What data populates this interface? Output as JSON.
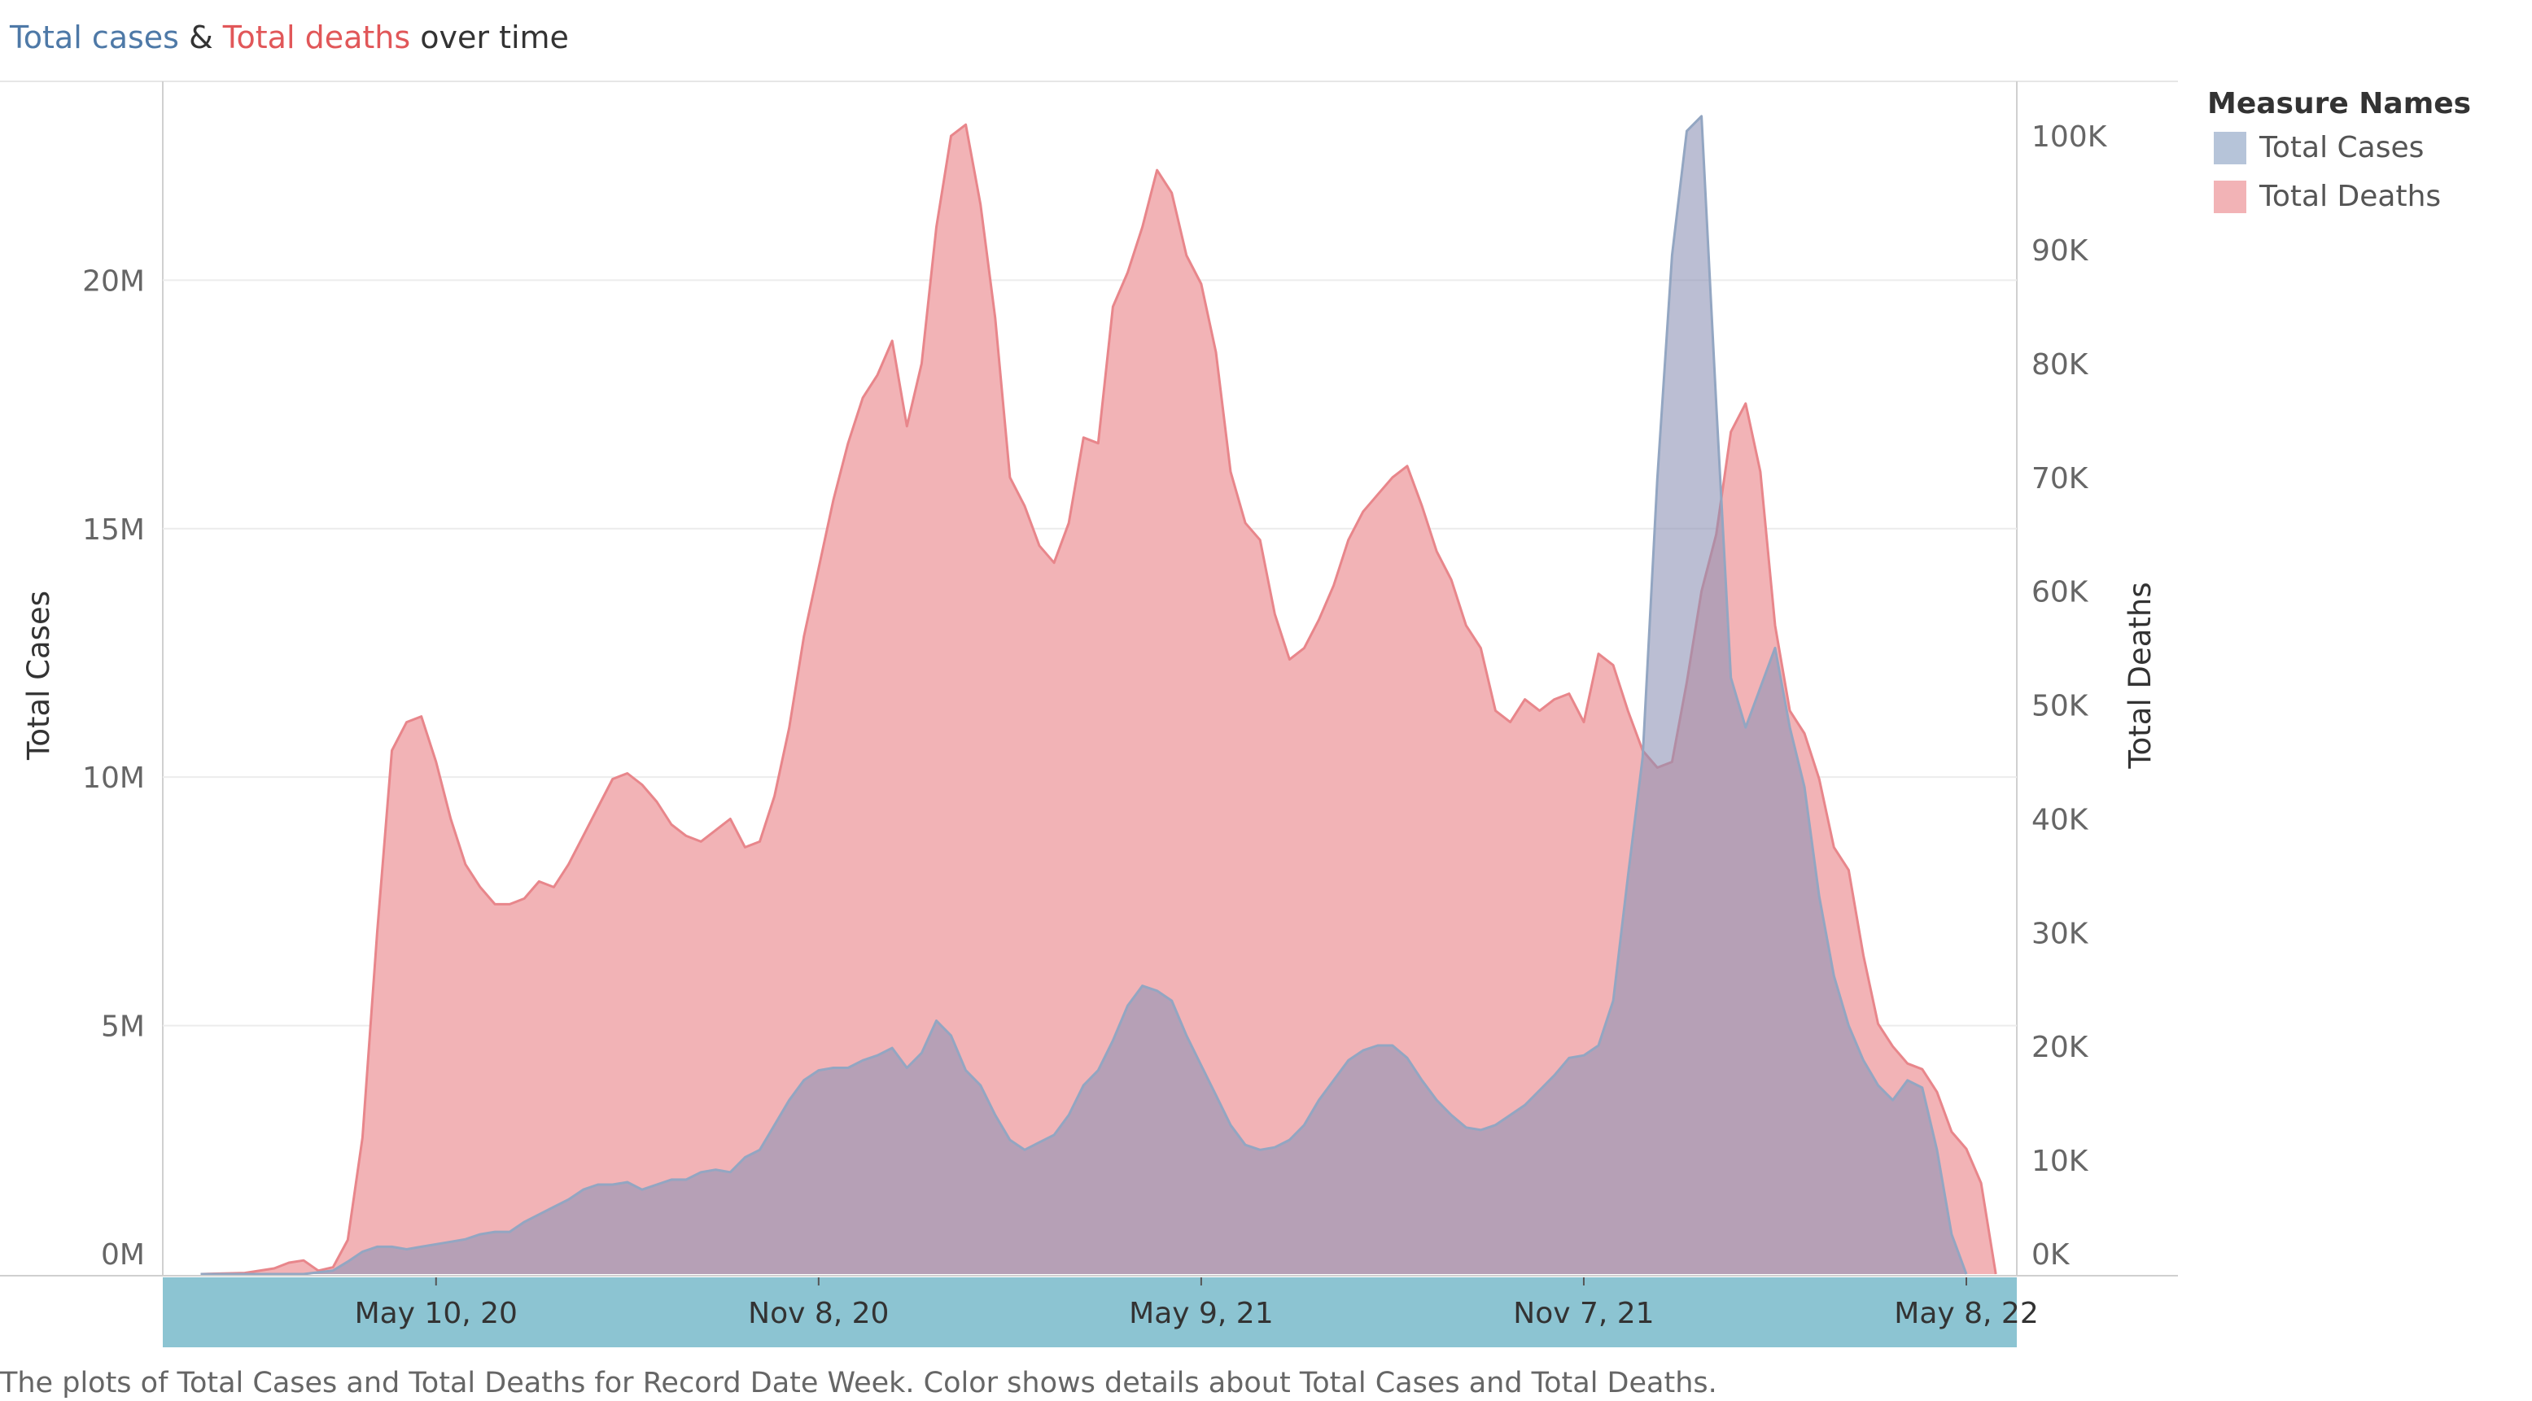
{
  "title": {
    "part1": "Total cases",
    "part2": " & ",
    "part3": "Total deaths",
    "part4": " over time",
    "color_cases": "#4e79a7",
    "color_deaths": "#e15759"
  },
  "footer": "The plots of Total Cases and Total Deaths for Record Date Week.  Color shows details about Total Cases and Total Deaths.",
  "legend": {
    "title": "Measure Names",
    "items": [
      {
        "label": "Total Cases",
        "color": "#b6c4d9"
      },
      {
        "label": "Total Deaths",
        "color": "#f2b3b6"
      }
    ]
  },
  "chart_data": {
    "type": "area",
    "x_type": "date",
    "x_range": [
      "2020-01-01",
      "2022-06-01"
    ],
    "x_ticks": [
      {
        "date": "2020-05-10",
        "label": "May 10, 20"
      },
      {
        "date": "2020-11-08",
        "label": "Nov 8, 20"
      },
      {
        "date": "2021-05-09",
        "label": "May 9, 21"
      },
      {
        "date": "2021-11-07",
        "label": "Nov 7, 21"
      },
      {
        "date": "2022-05-08",
        "label": "May 8, 22"
      }
    ],
    "y_left": {
      "label": "Total Cases",
      "min": 0,
      "max": 24000000,
      "ticks": [
        0,
        5000000,
        10000000,
        15000000,
        20000000
      ],
      "tick_labels": [
        "0M",
        "5M",
        "10M",
        "15M",
        "20M"
      ]
    },
    "y_right": {
      "label": "Total Deaths",
      "min": 0,
      "max": 104800,
      "ticks": [
        0,
        10000,
        20000,
        30000,
        40000,
        50000,
        60000,
        70000,
        80000,
        90000,
        100000
      ],
      "tick_labels": [
        "0K",
        "10K",
        "20K",
        "30K",
        "40K",
        "50K",
        "60K",
        "70K",
        "80K",
        "90K",
        "100K"
      ]
    },
    "grid": true,
    "legend_position": "right",
    "series": [
      {
        "name": "Total Deaths",
        "axis": "right",
        "fill": "#f2b3b6",
        "stroke": "#e8868b",
        "points": [
          [
            "2020-01-19",
            0
          ],
          [
            "2020-02-09",
            100
          ],
          [
            "2020-02-23",
            500
          ],
          [
            "2020-03-01",
            1000
          ],
          [
            "2020-03-08",
            1200
          ],
          [
            "2020-03-15",
            300
          ],
          [
            "2020-03-22",
            600
          ],
          [
            "2020-03-29",
            3000
          ],
          [
            "2020-04-05",
            12000
          ],
          [
            "2020-04-12",
            30000
          ],
          [
            "2020-04-19",
            46000
          ],
          [
            "2020-04-26",
            48500
          ],
          [
            "2020-05-03",
            49000
          ],
          [
            "2020-05-10",
            45000
          ],
          [
            "2020-05-17",
            40000
          ],
          [
            "2020-05-24",
            36000
          ],
          [
            "2020-05-31",
            34000
          ],
          [
            "2020-06-07",
            32500
          ],
          [
            "2020-06-14",
            32500
          ],
          [
            "2020-06-21",
            33000
          ],
          [
            "2020-06-28",
            34500
          ],
          [
            "2020-07-05",
            34000
          ],
          [
            "2020-07-12",
            36000
          ],
          [
            "2020-07-19",
            38500
          ],
          [
            "2020-07-26",
            41000
          ],
          [
            "2020-08-02",
            43500
          ],
          [
            "2020-08-09",
            44000
          ],
          [
            "2020-08-16",
            43000
          ],
          [
            "2020-08-23",
            41500
          ],
          [
            "2020-08-30",
            39500
          ],
          [
            "2020-09-06",
            38500
          ],
          [
            "2020-09-13",
            38000
          ],
          [
            "2020-09-20",
            39000
          ],
          [
            "2020-09-27",
            40000
          ],
          [
            "2020-10-04",
            37500
          ],
          [
            "2020-10-11",
            38000
          ],
          [
            "2020-10-18",
            42000
          ],
          [
            "2020-10-25",
            48000
          ],
          [
            "2020-11-01",
            56000
          ],
          [
            "2020-11-08",
            62000
          ],
          [
            "2020-11-15",
            68000
          ],
          [
            "2020-11-22",
            73000
          ],
          [
            "2020-11-29",
            77000
          ],
          [
            "2020-12-06",
            79000
          ],
          [
            "2020-12-13",
            82000
          ],
          [
            "2020-12-20",
            74500
          ],
          [
            "2020-12-27",
            80000
          ],
          [
            "2021-01-03",
            92000
          ],
          [
            "2021-01-10",
            100000
          ],
          [
            "2021-01-17",
            101000
          ],
          [
            "2021-01-24",
            94000
          ],
          [
            "2021-01-31",
            84000
          ],
          [
            "2021-02-07",
            70000
          ],
          [
            "2021-02-14",
            67500
          ],
          [
            "2021-02-21",
            64000
          ],
          [
            "2021-02-28",
            62500
          ],
          [
            "2021-03-07",
            66000
          ],
          [
            "2021-03-14",
            73500
          ],
          [
            "2021-03-21",
            73000
          ],
          [
            "2021-03-28",
            85000
          ],
          [
            "2021-04-04",
            88000
          ],
          [
            "2021-04-11",
            92000
          ],
          [
            "2021-04-18",
            97000
          ],
          [
            "2021-04-25",
            95000
          ],
          [
            "2021-05-02",
            89500
          ],
          [
            "2021-05-09",
            87000
          ],
          [
            "2021-05-16",
            81000
          ],
          [
            "2021-05-23",
            70500
          ],
          [
            "2021-05-30",
            66000
          ],
          [
            "2021-06-06",
            64500
          ],
          [
            "2021-06-13",
            58000
          ],
          [
            "2021-06-20",
            54000
          ],
          [
            "2021-06-27",
            55000
          ],
          [
            "2021-07-04",
            57500
          ],
          [
            "2021-07-11",
            60500
          ],
          [
            "2021-07-18",
            64500
          ],
          [
            "2021-07-25",
            67000
          ],
          [
            "2021-08-01",
            68500
          ],
          [
            "2021-08-08",
            70000
          ],
          [
            "2021-08-15",
            71000
          ],
          [
            "2021-08-22",
            67500
          ],
          [
            "2021-08-29",
            63500
          ],
          [
            "2021-09-05",
            61000
          ],
          [
            "2021-09-12",
            57000
          ],
          [
            "2021-09-19",
            55000
          ],
          [
            "2021-09-26",
            49500
          ],
          [
            "2021-10-03",
            48500
          ],
          [
            "2021-10-10",
            50500
          ],
          [
            "2021-10-17",
            49500
          ],
          [
            "2021-10-24",
            50500
          ],
          [
            "2021-10-31",
            51000
          ],
          [
            "2021-11-07",
            48500
          ],
          [
            "2021-11-14",
            54500
          ],
          [
            "2021-11-21",
            53500
          ],
          [
            "2021-11-28",
            49500
          ],
          [
            "2021-12-05",
            46000
          ],
          [
            "2021-12-12",
            44500
          ],
          [
            "2021-12-19",
            45000
          ],
          [
            "2021-12-26",
            52000
          ],
          [
            "2022-01-02",
            60000
          ],
          [
            "2022-01-09",
            65000
          ],
          [
            "2022-01-16",
            74000
          ],
          [
            "2022-01-23",
            76500
          ],
          [
            "2022-01-30",
            70500
          ],
          [
            "2022-02-06",
            57000
          ],
          [
            "2022-02-13",
            49500
          ],
          [
            "2022-02-20",
            47500
          ],
          [
            "2022-02-27",
            43500
          ],
          [
            "2022-03-06",
            37500
          ],
          [
            "2022-03-13",
            35500
          ],
          [
            "2022-03-20",
            28000
          ],
          [
            "2022-03-27",
            22000
          ],
          [
            "2022-04-03",
            20000
          ],
          [
            "2022-04-10",
            18500
          ],
          [
            "2022-04-17",
            18000
          ],
          [
            "2022-04-24",
            16000
          ],
          [
            "2022-05-01",
            12500
          ],
          [
            "2022-05-08",
            11000
          ],
          [
            "2022-05-15",
            8000
          ],
          [
            "2022-05-22",
            0
          ]
        ]
      },
      {
        "name": "Total Cases",
        "axis": "left",
        "fill": "#8e93b6",
        "fill_opacity": 0.6,
        "stroke": "#93a6c2",
        "points": [
          [
            "2020-01-19",
            0
          ],
          [
            "2020-03-08",
            0
          ],
          [
            "2020-03-22",
            70000
          ],
          [
            "2020-03-29",
            250000
          ],
          [
            "2020-04-05",
            450000
          ],
          [
            "2020-04-12",
            550000
          ],
          [
            "2020-04-19",
            550000
          ],
          [
            "2020-04-26",
            500000
          ],
          [
            "2020-05-03",
            550000
          ],
          [
            "2020-05-10",
            600000
          ],
          [
            "2020-05-17",
            650000
          ],
          [
            "2020-05-24",
            700000
          ],
          [
            "2020-05-31",
            800000
          ],
          [
            "2020-06-07",
            850000
          ],
          [
            "2020-06-14",
            850000
          ],
          [
            "2020-06-21",
            1050000
          ],
          [
            "2020-06-28",
            1200000
          ],
          [
            "2020-07-05",
            1350000
          ],
          [
            "2020-07-12",
            1500000
          ],
          [
            "2020-07-19",
            1700000
          ],
          [
            "2020-07-26",
            1800000
          ],
          [
            "2020-08-02",
            1800000
          ],
          [
            "2020-08-09",
            1850000
          ],
          [
            "2020-08-16",
            1700000
          ],
          [
            "2020-08-23",
            1800000
          ],
          [
            "2020-08-30",
            1900000
          ],
          [
            "2020-09-06",
            1900000
          ],
          [
            "2020-09-13",
            2050000
          ],
          [
            "2020-09-20",
            2100000
          ],
          [
            "2020-09-27",
            2050000
          ],
          [
            "2020-10-04",
            2350000
          ],
          [
            "2020-10-11",
            2500000
          ],
          [
            "2020-10-18",
            3000000
          ],
          [
            "2020-10-25",
            3500000
          ],
          [
            "2020-11-01",
            3900000
          ],
          [
            "2020-11-08",
            4100000
          ],
          [
            "2020-11-15",
            4150000
          ],
          [
            "2020-11-22",
            4150000
          ],
          [
            "2020-11-29",
            4300000
          ],
          [
            "2020-12-06",
            4400000
          ],
          [
            "2020-12-13",
            4550000
          ],
          [
            "2020-12-20",
            4150000
          ],
          [
            "2020-12-27",
            4450000
          ],
          [
            "2021-01-03",
            5100000
          ],
          [
            "2021-01-10",
            4800000
          ],
          [
            "2021-01-17",
            4100000
          ],
          [
            "2021-01-24",
            3800000
          ],
          [
            "2021-01-31",
            3200000
          ],
          [
            "2021-02-07",
            2700000
          ],
          [
            "2021-02-14",
            2500000
          ],
          [
            "2021-02-21",
            2650000
          ],
          [
            "2021-02-28",
            2800000
          ],
          [
            "2021-03-07",
            3200000
          ],
          [
            "2021-03-14",
            3800000
          ],
          [
            "2021-03-21",
            4100000
          ],
          [
            "2021-03-28",
            4700000
          ],
          [
            "2021-04-04",
            5400000
          ],
          [
            "2021-04-11",
            5800000
          ],
          [
            "2021-04-18",
            5700000
          ],
          [
            "2021-04-25",
            5500000
          ],
          [
            "2021-05-02",
            4800000
          ],
          [
            "2021-05-09",
            4200000
          ],
          [
            "2021-05-16",
            3600000
          ],
          [
            "2021-05-23",
            3000000
          ],
          [
            "2021-05-30",
            2600000
          ],
          [
            "2021-06-06",
            2500000
          ],
          [
            "2021-06-13",
            2550000
          ],
          [
            "2021-06-20",
            2700000
          ],
          [
            "2021-06-27",
            3000000
          ],
          [
            "2021-07-04",
            3500000
          ],
          [
            "2021-07-11",
            3900000
          ],
          [
            "2021-07-18",
            4300000
          ],
          [
            "2021-07-25",
            4500000
          ],
          [
            "2021-08-01",
            4600000
          ],
          [
            "2021-08-08",
            4600000
          ],
          [
            "2021-08-15",
            4350000
          ],
          [
            "2021-08-22",
            3900000
          ],
          [
            "2021-08-29",
            3500000
          ],
          [
            "2021-09-05",
            3200000
          ],
          [
            "2021-09-12",
            2950000
          ],
          [
            "2021-09-19",
            2900000
          ],
          [
            "2021-09-26",
            3000000
          ],
          [
            "2021-10-03",
            3200000
          ],
          [
            "2021-10-10",
            3400000
          ],
          [
            "2021-10-17",
            3700000
          ],
          [
            "2021-10-24",
            4000000
          ],
          [
            "2021-10-31",
            4350000
          ],
          [
            "2021-11-07",
            4400000
          ],
          [
            "2021-11-14",
            4600000
          ],
          [
            "2021-11-21",
            5500000
          ],
          [
            "2021-11-28",
            8000000
          ],
          [
            "2021-12-05",
            10400000
          ],
          [
            "2021-12-12",
            16000000
          ],
          [
            "2021-12-19",
            20500000
          ],
          [
            "2021-12-26",
            23000000
          ],
          [
            "2022-01-02",
            23300000
          ],
          [
            "2022-01-09",
            17500000
          ],
          [
            "2022-01-16",
            12000000
          ],
          [
            "2022-01-23",
            11000000
          ],
          [
            "2022-01-30",
            11800000
          ],
          [
            "2022-02-06",
            12600000
          ],
          [
            "2022-02-13",
            11000000
          ],
          [
            "2022-02-20",
            9800000
          ],
          [
            "2022-02-27",
            7600000
          ],
          [
            "2022-03-06",
            6000000
          ],
          [
            "2022-03-13",
            5000000
          ],
          [
            "2022-03-20",
            4300000
          ],
          [
            "2022-03-27",
            3800000
          ],
          [
            "2022-04-03",
            3500000
          ],
          [
            "2022-04-10",
            3900000
          ],
          [
            "2022-04-17",
            3750000
          ],
          [
            "2022-04-24",
            2500000
          ],
          [
            "2022-05-01",
            800000
          ],
          [
            "2022-05-08",
            0
          ]
        ]
      }
    ]
  }
}
